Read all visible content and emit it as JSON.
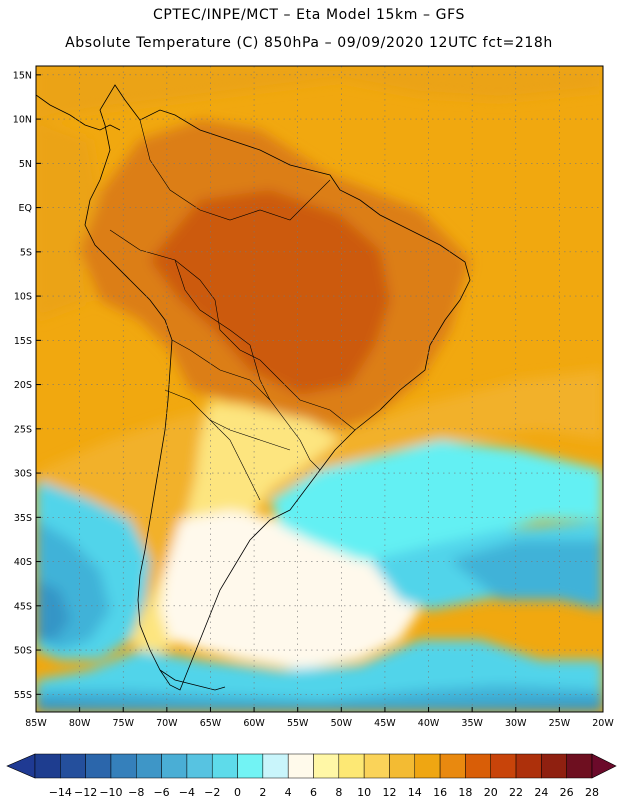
{
  "header": {
    "line1": "CPTEC/INPE/MCT –   Eta Model 15km – GFS",
    "line2": "Absolute Temperature (C) 850hPa – 09/09/2020 12UTC fct=218h"
  },
  "map": {
    "lat_labels": [
      "15N",
      "10N",
      "5N",
      "EQ",
      "5S",
      "10S",
      "15S",
      "20S",
      "25S",
      "30S",
      "35S",
      "40S",
      "45S",
      "50S",
      "55S"
    ],
    "lon_labels": [
      "85W",
      "80W",
      "75W",
      "70W",
      "65W",
      "60W",
      "55W",
      "50W",
      "45W",
      "40W",
      "35W",
      "30W",
      "25W",
      "20W"
    ],
    "lon_range": [
      -85,
      -20
    ],
    "lat_range": [
      -57,
      16
    ]
  },
  "legend": {
    "values": [
      "-14",
      "-12",
      "-10",
      "-8",
      "-6",
      "-4",
      "-2",
      "0",
      "2",
      "4",
      "6",
      "8",
      "10",
      "12",
      "14",
      "16",
      "18",
      "20",
      "22",
      "24",
      "26",
      "28"
    ],
    "colors": [
      "#1e3d8f",
      "#244f9c",
      "#2b66ab",
      "#3580bb",
      "#3e96c7",
      "#4aaed5",
      "#57c3e1",
      "#5edbea",
      "#72f3f4",
      "#c9f5fb",
      "#fffaeb",
      "#fff7a6",
      "#fde874",
      "#fad359",
      "#f3bb33",
      "#efa612",
      "#e9890f",
      "#d95e07",
      "#c8440a",
      "#ad300b",
      "#8f2010",
      "#6e0f20"
    ],
    "under_color": "#1f3a93",
    "over_color": "#6b0a2a"
  },
  "palette": {
    "warm_bg": "#f1a80f",
    "ocean_orange": "#eba312",
    "hot_core": "#cc5a0d",
    "warm_land": "#dc7e12",
    "mid_land": "#f2b12a",
    "cool_land": "#fde57f",
    "pale": "#fff9ec",
    "cyan": "#63f0f3",
    "light_blue": "#51d4ea",
    "mid_blue": "#41b2d8",
    "deep_blue": "#3595c6"
  }
}
